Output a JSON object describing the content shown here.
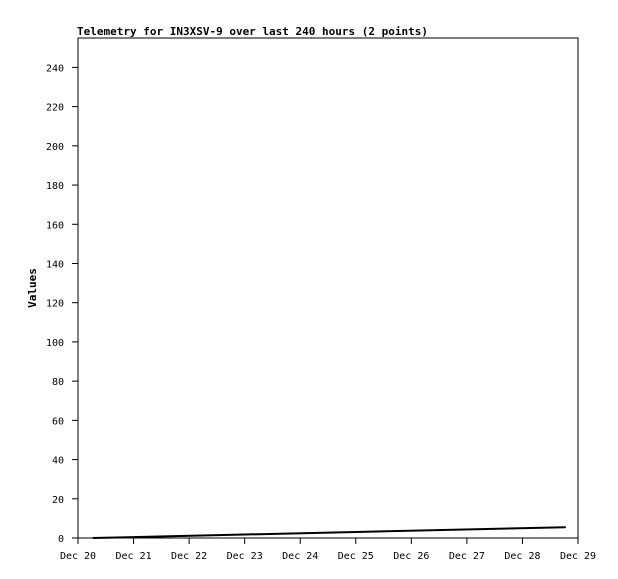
{
  "chart_data": {
    "type": "line",
    "title": "Telemetry for IN3XSV-9 over last 240 hours (2 points)",
    "xlabel": "",
    "ylabel": "Values",
    "x_ticks": [
      "Dec 20",
      "Dec 21",
      "Dec 22",
      "Dec 23",
      "Dec 24",
      "Dec 25",
      "Dec 26",
      "Dec 27",
      "Dec 28",
      "Dec 29"
    ],
    "y_ticks": [
      0,
      20,
      40,
      60,
      80,
      100,
      120,
      140,
      160,
      180,
      200,
      220,
      240
    ],
    "xlim": [
      "Dec 20 00:00",
      "Dec 29 00:00"
    ],
    "ylim": [
      0,
      255
    ],
    "grid": false,
    "series": [
      {
        "x": [
          "Dec 20 06:30",
          "Dec 28 18:30"
        ],
        "values": [
          0,
          5.5
        ],
        "color": "#000000"
      }
    ]
  }
}
